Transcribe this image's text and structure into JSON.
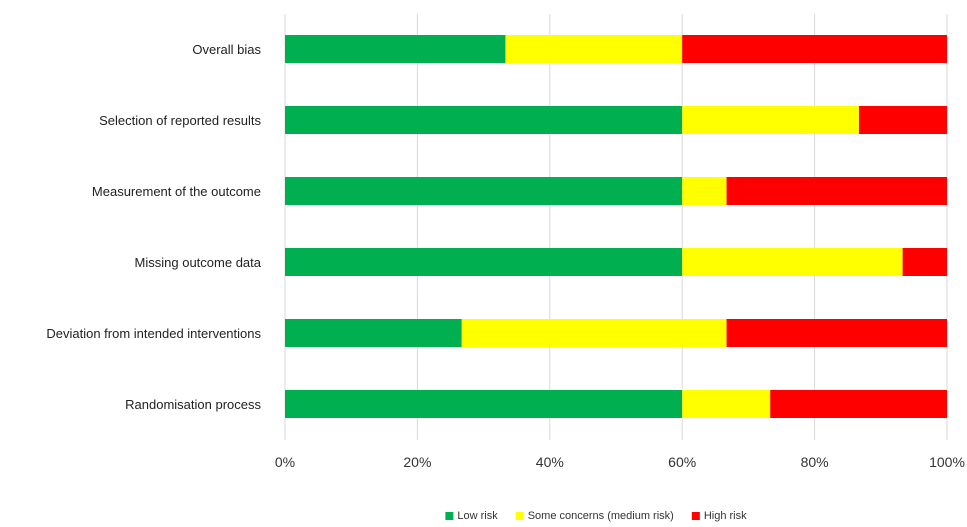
{
  "chart_data": {
    "type": "bar",
    "orientation": "horizontal",
    "stacked": true,
    "categories": [
      "Overall bias",
      "Selection of reported results",
      "Measurement of the outcome",
      "Missing outcome data",
      "Deviation from intended interventions",
      "Randomisation process"
    ],
    "series": [
      {
        "name": "Low risk",
        "color": "#00b050",
        "values": [
          33.3,
          60.0,
          60.0,
          60.0,
          26.7,
          60.0
        ]
      },
      {
        "name": "Some concerns (medium risk)",
        "color": "#ffff00",
        "values": [
          26.7,
          26.7,
          6.7,
          33.3,
          40.0,
          13.3
        ]
      },
      {
        "name": "High risk",
        "color": "#ff0000",
        "values": [
          40.0,
          13.3,
          33.3,
          6.7,
          33.3,
          26.7
        ]
      }
    ],
    "xlim": [
      0,
      100
    ],
    "xticks": [
      "0%",
      "20%",
      "40%",
      "60%",
      "80%",
      "100%"
    ],
    "grid": "vertical",
    "legend_position": "bottom"
  }
}
